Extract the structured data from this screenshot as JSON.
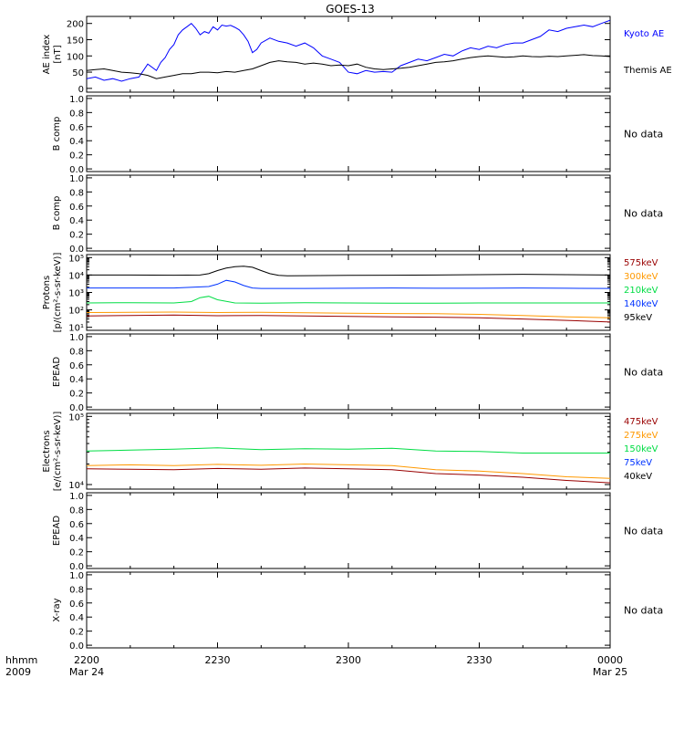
{
  "chart_data": {
    "title": "GOES-13",
    "type": "line",
    "x_axis": {
      "label_top": "hhmm",
      "label_bottom": "2009",
      "ticks": [
        {
          "t": 0,
          "top": "2200",
          "bottom": "Mar 24"
        },
        {
          "t": 30,
          "top": "2230",
          "bottom": ""
        },
        {
          "t": 60,
          "top": "2300",
          "bottom": ""
        },
        {
          "t": 90,
          "top": "2330",
          "bottom": ""
        },
        {
          "t": 120,
          "top": "0000",
          "bottom": "Mar 25"
        }
      ],
      "range": [
        0,
        120
      ]
    },
    "panels": [
      {
        "ylabel": [
          "AE index",
          "[nT]"
        ],
        "ylim": [
          0,
          210
        ],
        "scale": "linear",
        "yticks": [
          {
            "v": 0,
            "label": "0"
          },
          {
            "v": 50,
            "label": "50"
          },
          {
            "v": 100,
            "label": "100"
          },
          {
            "v": 150,
            "label": "150"
          },
          {
            "v": 200,
            "label": "200"
          }
        ],
        "series": [
          {
            "name": "Kyoto AE",
            "color": "#0000ff",
            "x": [
              0,
              2,
              4,
              6,
              8,
              10,
              12,
              14,
              16,
              17,
              18,
              19,
              20,
              21,
              22,
              23,
              24,
              25,
              26,
              27,
              28,
              29,
              30,
              31,
              32,
              33,
              34,
              35,
              36,
              37,
              38,
              39,
              40,
              42,
              44,
              46,
              48,
              50,
              52,
              54,
              56,
              58,
              60,
              62,
              64,
              66,
              68,
              70,
              72,
              74,
              76,
              78,
              80,
              82,
              84,
              86,
              88,
              90,
              92,
              94,
              96,
              98,
              100,
              102,
              104,
              106,
              108,
              110,
              112,
              114,
              116,
              118,
              120
            ],
            "y": [
              30,
              35,
              25,
              30,
              22,
              30,
              35,
              75,
              55,
              80,
              95,
              120,
              135,
              165,
              180,
              190,
              200,
              185,
              165,
              175,
              170,
              190,
              180,
              195,
              192,
              194,
              188,
              180,
              165,
              145,
              110,
              120,
              140,
              155,
              145,
              140,
              130,
              140,
              125,
              100,
              90,
              80,
              50,
              45,
              55,
              50,
              52,
              50,
              70,
              80,
              90,
              85,
              95,
              105,
              100,
              115,
              125,
              120,
              130,
              125,
              135,
              140,
              140,
              150,
              160,
              180,
              175,
              185,
              190,
              195,
              190,
              200,
              210
            ]
          },
          {
            "name": "Themis AE",
            "color": "#000000",
            "x": [
              0,
              2,
              4,
              6,
              8,
              10,
              12,
              14,
              16,
              18,
              20,
              22,
              24,
              26,
              28,
              30,
              32,
              34,
              36,
              38,
              40,
              42,
              44,
              46,
              48,
              50,
              52,
              54,
              56,
              58,
              60,
              62,
              64,
              66,
              68,
              70,
              72,
              74,
              76,
              78,
              80,
              82,
              84,
              86,
              88,
              90,
              92,
              94,
              96,
              98,
              100,
              102,
              104,
              106,
              108,
              110,
              112,
              114,
              116,
              118,
              120
            ],
            "y": [
              55,
              58,
              60,
              55,
              50,
              48,
              45,
              40,
              30,
              35,
              40,
              45,
              45,
              50,
              50,
              48,
              52,
              50,
              55,
              60,
              70,
              80,
              85,
              82,
              80,
              75,
              78,
              75,
              70,
              72,
              70,
              75,
              65,
              60,
              58,
              60,
              62,
              65,
              70,
              75,
              80,
              82,
              85,
              90,
              95,
              98,
              100,
              98,
              96,
              97,
              100,
              98,
              97,
              99,
              98,
              100,
              102,
              104,
              101,
              100,
              98
            ]
          }
        ]
      },
      {
        "ylabel": [
          "B comp"
        ],
        "ylim": [
          0,
          1
        ],
        "scale": "linear",
        "yticks": [
          {
            "v": 0,
            "label": "0.0"
          },
          {
            "v": 0.2,
            "label": "0.2"
          },
          {
            "v": 0.4,
            "label": "0.4"
          },
          {
            "v": 0.6,
            "label": "0.6"
          },
          {
            "v": 0.8,
            "label": "0.8"
          },
          {
            "v": 1.0,
            "label": "1.0"
          }
        ],
        "no_data": "No data"
      },
      {
        "ylabel": [
          "B comp"
        ],
        "ylim": [
          0,
          1
        ],
        "scale": "linear",
        "yticks": [
          {
            "v": 0,
            "label": "0.0"
          },
          {
            "v": 0.2,
            "label": "0.2"
          },
          {
            "v": 0.4,
            "label": "0.4"
          },
          {
            "v": 0.6,
            "label": "0.6"
          },
          {
            "v": 0.8,
            "label": "0.8"
          },
          {
            "v": 1.0,
            "label": "1.0"
          }
        ],
        "no_data": "No data"
      },
      {
        "ylabel": [
          "Protons",
          "[p/(cm²-s-sr-keV)]"
        ],
        "ylim": [
          10,
          100000
        ],
        "scale": "log",
        "yticks": [
          {
            "v": 10,
            "label": "10¹"
          },
          {
            "v": 100,
            "label": "10²"
          },
          {
            "v": 1000,
            "label": "10³"
          },
          {
            "v": 10000,
            "label": "10⁴"
          },
          {
            "v": 100000,
            "label": "10⁵"
          }
        ],
        "legend_order": [
          0,
          1,
          2,
          3,
          4
        ],
        "series": [
          {
            "name": "575keV",
            "color": "#990000",
            "x": [
              0,
              10,
              20,
              30,
              40,
              50,
              60,
              70,
              80,
              90,
              100,
              110,
              120
            ],
            "y": [
              45,
              48,
              50,
              46,
              48,
              45,
              42,
              40,
              38,
              35,
              30,
              25,
              20
            ]
          },
          {
            "name": "300keV",
            "color": "#ff9900",
            "x": [
              0,
              10,
              20,
              30,
              40,
              50,
              60,
              70,
              80,
              90,
              100,
              110,
              120
            ],
            "y": [
              70,
              72,
              75,
              70,
              72,
              68,
              65,
              62,
              60,
              55,
              48,
              40,
              35
            ]
          },
          {
            "name": "210keV",
            "color": "#00dd44",
            "x": [
              0,
              10,
              20,
              24,
              26,
              28,
              30,
              34,
              40,
              50,
              60,
              70,
              80,
              90,
              100,
              110,
              120
            ],
            "y": [
              250,
              260,
              250,
              300,
              500,
              600,
              380,
              250,
              240,
              260,
              250,
              240,
              240,
              250,
              250,
              250,
              250
            ]
          },
          {
            "name": "140keV",
            "color": "#0033ff",
            "x": [
              0,
              10,
              20,
              28,
              30,
              32,
              34,
              36,
              38,
              40,
              50,
              60,
              70,
              80,
              90,
              100,
              110,
              120
            ],
            "y": [
              1800,
              1800,
              1800,
              2200,
              3000,
              5000,
              4000,
              2500,
              1800,
              1700,
              1700,
              1750,
              1800,
              1750,
              1750,
              1800,
              1750,
              1700
            ]
          },
          {
            "name": "95keV",
            "color": "#000000",
            "x": [
              0,
              10,
              20,
              26,
              28,
              30,
              32,
              34,
              36,
              38,
              40,
              42,
              44,
              46,
              50,
              60,
              70,
              80,
              90,
              100,
              110,
              120
            ],
            "y": [
              10000,
              10000,
              9800,
              10000,
              12000,
              18000,
              25000,
              30000,
              32000,
              28000,
              18000,
              12000,
              9500,
              9000,
              9200,
              9500,
              9800,
              10000,
              10500,
              11000,
              10500,
              10000
            ]
          }
        ]
      },
      {
        "ylabel": [
          "EPEAD"
        ],
        "ylim": [
          0,
          1
        ],
        "scale": "linear",
        "yticks": [
          {
            "v": 0,
            "label": "0.0"
          },
          {
            "v": 0.2,
            "label": "0.2"
          },
          {
            "v": 0.4,
            "label": "0.4"
          },
          {
            "v": 0.6,
            "label": "0.6"
          },
          {
            "v": 0.8,
            "label": "0.8"
          },
          {
            "v": 1.0,
            "label": "1.0"
          }
        ],
        "no_data": "No data"
      },
      {
        "ylabel": [
          "Electrons",
          "[e/(cm²-s-sr-keV)]"
        ],
        "ylim": [
          10000,
          100000
        ],
        "scale": "log",
        "yticks": [
          {
            "v": 10000,
            "label": "10⁴"
          },
          {
            "v": 100000,
            "label": "10⁵"
          }
        ],
        "series": [
          {
            "name": "475keV",
            "color": "#990000",
            "x": [
              0,
              10,
              20,
              30,
              40,
              50,
              60,
              70,
              80,
              90,
              100,
              110,
              120
            ],
            "y": [
              17000,
              16800,
              16500,
              17200,
              16800,
              17500,
              17000,
              16500,
              14500,
              13800,
              12800,
              11500,
              10600
            ]
          },
          {
            "name": "275keV",
            "color": "#ff9900",
            "x": [
              0,
              10,
              20,
              30,
              40,
              50,
              60,
              70,
              80,
              90,
              100,
              110,
              120
            ],
            "y": [
              19000,
              19500,
              19000,
              19800,
              19200,
              20000,
              19500,
              19000,
              16500,
              15800,
              14500,
              13000,
              12300
            ]
          },
          {
            "name": "150keV",
            "color": "#00dd44",
            "x": [
              0,
              10,
              20,
              30,
              40,
              50,
              60,
              70,
              80,
              90,
              100,
              110,
              120
            ],
            "y": [
              31000,
              32000,
              33000,
              34500,
              32500,
              33500,
              33000,
              34000,
              31000,
              30500,
              29000,
              29000,
              29000
            ]
          },
          {
            "name": "75keV",
            "color": "#0033ff",
            "x": [],
            "y": []
          },
          {
            "name": "40keV",
            "color": "#000000",
            "x": [],
            "y": []
          }
        ]
      },
      {
        "ylabel": [
          "EPEAD"
        ],
        "ylim": [
          0,
          1
        ],
        "scale": "linear",
        "yticks": [
          {
            "v": 0,
            "label": "0.0"
          },
          {
            "v": 0.2,
            "label": "0.2"
          },
          {
            "v": 0.4,
            "label": "0.4"
          },
          {
            "v": 0.6,
            "label": "0.6"
          },
          {
            "v": 0.8,
            "label": "0.8"
          },
          {
            "v": 1.0,
            "label": "1.0"
          }
        ],
        "no_data": "No data"
      },
      {
        "ylabel": [
          "X-ray"
        ],
        "ylim": [
          0,
          1
        ],
        "scale": "linear",
        "yticks": [
          {
            "v": 0,
            "label": "0.0"
          },
          {
            "v": 0.2,
            "label": "0.2"
          },
          {
            "v": 0.4,
            "label": "0.4"
          },
          {
            "v": 0.6,
            "label": "0.6"
          },
          {
            "v": 0.8,
            "label": "0.8"
          },
          {
            "v": 1.0,
            "label": "1.0"
          }
        ],
        "no_data": "No data"
      }
    ]
  }
}
